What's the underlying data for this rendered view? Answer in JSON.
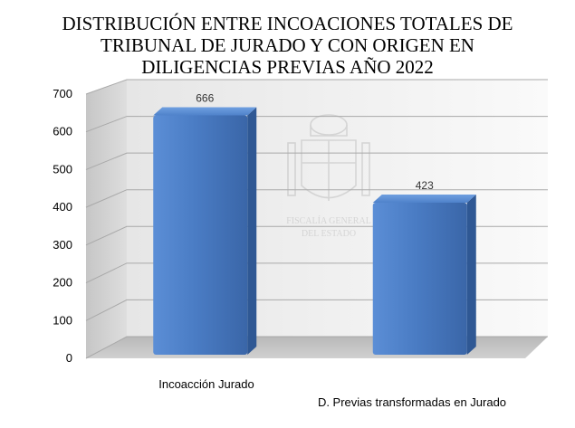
{
  "title_lines": [
    "DISTRIBUCIÓN ENTRE INCOACIONES TOTALES DE",
    "TRIBUNAL DE JURADO Y CON ORIGEN EN",
    "DILIGENCIAS PREVIAS AÑO 2022"
  ],
  "chart_data": {
    "type": "bar",
    "title": "DISTRIBUCIÓN ENTRE INCOACIONES TOTALES DE TRIBUNAL DE JURADO Y CON ORIGEN EN DILIGENCIAS PREVIAS AÑO 2022",
    "categories": [
      "Incoacción Jurado",
      "D. Previas transformadas en Jurado"
    ],
    "values": [
      666,
      423
    ],
    "data_labels": [
      "666",
      "423"
    ],
    "ylim": [
      0,
      700
    ],
    "yticks": [
      0,
      100,
      200,
      300,
      400,
      500,
      600,
      700
    ],
    "grid": true,
    "style": "3d",
    "bar_color": "#4a7cc4"
  },
  "watermark": {
    "emblem": "coat-of-arms",
    "lines": [
      "FISCALÍA GENERAL",
      "DEL ESTADO"
    ]
  }
}
